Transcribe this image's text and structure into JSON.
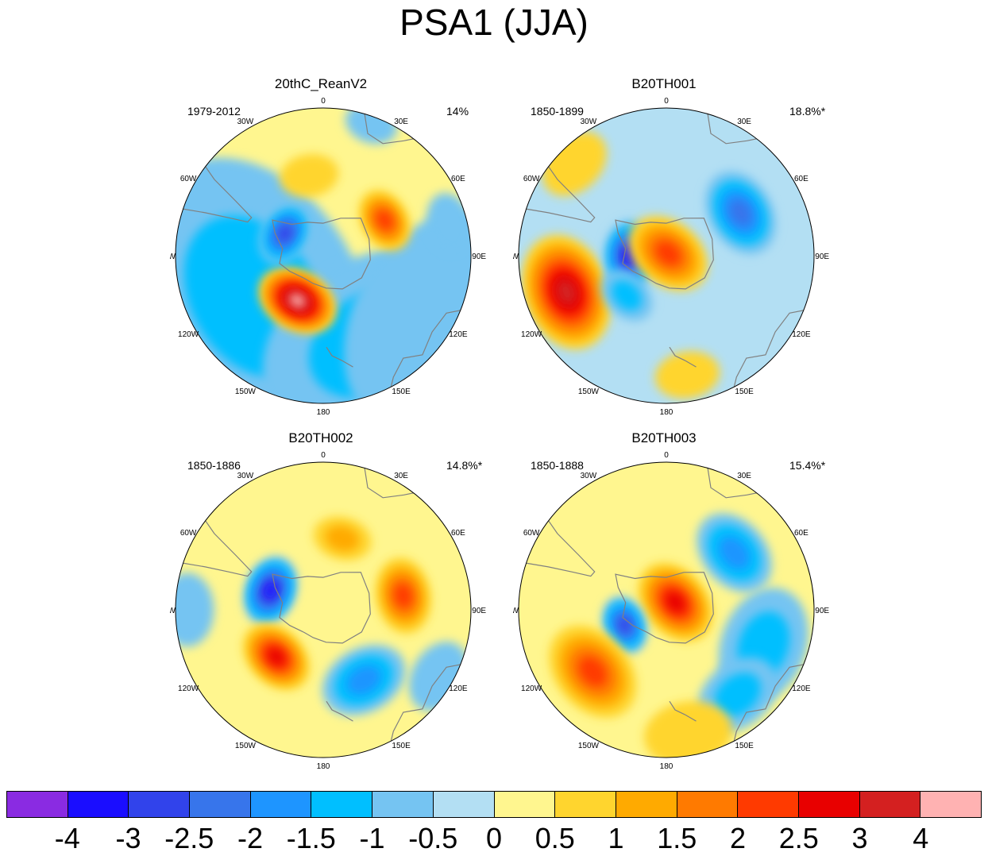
{
  "title": "PSA1 (JJA)",
  "lon_labels": [
    "0",
    "30E",
    "60E",
    "90E",
    "120E",
    "150E",
    "180",
    "150W",
    "120W",
    "90W",
    "60W",
    "30W"
  ],
  "panels": [
    {
      "title": "20thC_ReanV2",
      "period": "1979-2012",
      "percent": "14%",
      "background": "#fff68f",
      "blobs": [
        {
          "lon": -120,
          "r": 0.55,
          "v": -1.0,
          "w": 1.0
        },
        {
          "lon": 150,
          "r": 0.68,
          "v": -1.2,
          "w": 0.8
        },
        {
          "lon": 120,
          "r": 0.9,
          "v": -0.5,
          "w": 0.8
        },
        {
          "lon": -150,
          "r": 0.35,
          "v": 4.2,
          "w": 0.28
        },
        {
          "lon": -60,
          "r": 0.3,
          "v": -2.7,
          "w": 0.22
        },
        {
          "lon": 60,
          "r": 0.48,
          "v": 2.4,
          "w": 0.22
        },
        {
          "lon": -10,
          "r": 0.55,
          "v": 0.9,
          "w": 0.2
        },
        {
          "lon": 20,
          "r": 0.95,
          "v": -0.55,
          "w": 0.18
        },
        {
          "lon": 75,
          "r": 0.88,
          "v": -0.5,
          "w": 0.2
        }
      ]
    },
    {
      "title": "B20TH001",
      "period": "1850-1899",
      "percent": "18.8%*",
      "background": "#b3dff3",
      "blobs": [
        {
          "lon": -110,
          "r": 0.72,
          "v": 3.0,
          "w": 0.4
        },
        {
          "lon": -90,
          "r": 0.25,
          "v": -3.2,
          "w": 0.24
        },
        {
          "lon": 40,
          "r": 0.02,
          "v": 2.4,
          "w": 0.3
        },
        {
          "lon": 60,
          "r": 0.58,
          "v": -2.0,
          "w": 0.3
        },
        {
          "lon": 170,
          "r": 0.82,
          "v": 0.7,
          "w": 0.22
        },
        {
          "lon": -45,
          "r": 0.88,
          "v": 0.9,
          "w": 0.25
        },
        {
          "lon": -135,
          "r": 0.38,
          "v": -1.3,
          "w": 0.2
        }
      ]
    },
    {
      "title": "B20TH002",
      "period": "1850-1886",
      "percent": "14.8%*",
      "background": "#fff68f",
      "blobs": [
        {
          "lon": -70,
          "r": 0.38,
          "v": -3.2,
          "w": 0.24
        },
        {
          "lon": -135,
          "r": 0.45,
          "v": 2.9,
          "w": 0.26
        },
        {
          "lon": 80,
          "r": 0.55,
          "v": 2.0,
          "w": 0.26
        },
        {
          "lon": 15,
          "r": 0.5,
          "v": 1.3,
          "w": 0.2
        },
        {
          "lon": 150,
          "r": 0.55,
          "v": -1.8,
          "w": 0.3
        },
        {
          "lon": -90,
          "r": 0.92,
          "v": -0.8,
          "w": 0.25
        },
        {
          "lon": 120,
          "r": 0.9,
          "v": -0.5,
          "w": 0.25
        }
      ]
    },
    {
      "title": "B20TH003",
      "period": "1850-1888",
      "percent": "15.4%*",
      "background": "#fff68f",
      "blobs": [
        {
          "lon": 50,
          "r": 0.08,
          "v": 2.5,
          "w": 0.3
        },
        {
          "lon": -110,
          "r": 0.3,
          "v": -2.5,
          "w": 0.2
        },
        {
          "lon": -130,
          "r": 0.65,
          "v": 2.4,
          "w": 0.35
        },
        {
          "lon": 50,
          "r": 0.6,
          "v": -1.8,
          "w": 0.3
        },
        {
          "lon": 110,
          "r": 0.7,
          "v": -1.3,
          "w": 0.4
        },
        {
          "lon": 140,
          "r": 0.75,
          "v": -1.3,
          "w": 0.3
        },
        {
          "lon": 170,
          "r": 0.85,
          "v": 0.5,
          "w": 0.3
        }
      ]
    }
  ],
  "colorbar": {
    "colors": [
      "#8a2be2",
      "#1a0dff",
      "#3143eb",
      "#3775eb",
      "#1e95ff",
      "#00bfff",
      "#75c4f2",
      "#b3dff3",
      "#fff68f",
      "#ffd52e",
      "#ffaa00",
      "#ff7a00",
      "#ff3a00",
      "#e80000",
      "#d42020",
      "#ffb2b2"
    ],
    "labels": [
      "-4",
      "-3",
      "-2.5",
      "-2",
      "-1.5",
      "-1",
      "-0.5",
      "0",
      "0.5",
      "1",
      "1.5",
      "2",
      "2.5",
      "3",
      "4"
    ]
  }
}
